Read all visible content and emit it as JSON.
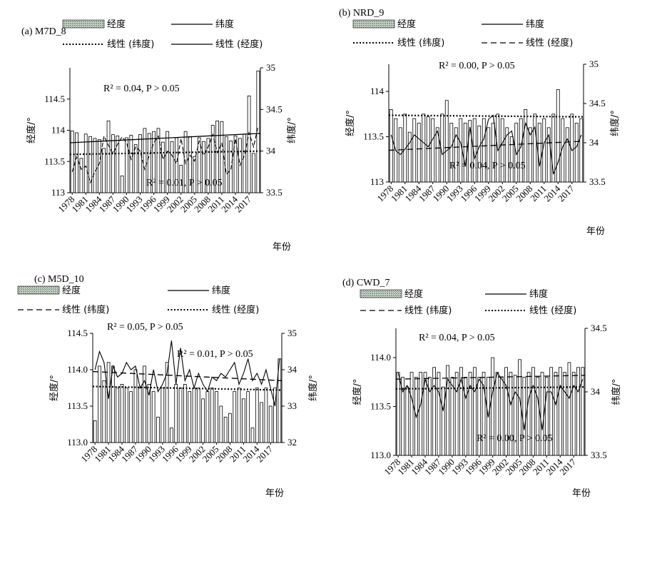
{
  "chart_data": [
    {
      "id": "a",
      "type": "bar+line",
      "title": "(a) M7D_8",
      "legend": {
        "bar": "经度",
        "lat_line": "纬度",
        "lat_trend": "线性 (纬度)",
        "lon_trend": "线性 (经度)",
        "layout": "top"
      },
      "ylabel_left": "经度/°",
      "ylabel_right": "纬度/°",
      "xlabel": "年份",
      "ylim_left": [
        113,
        115
      ],
      "yticks_left": [
        "113",
        "113.5",
        "114",
        "114.5"
      ],
      "ylim_right": [
        33.5,
        35
      ],
      "yticks_right": [
        "33.5",
        "34",
        "34.5",
        "35"
      ],
      "x_tick_labels": [
        "1978",
        "1981",
        "1984",
        "1987",
        "1990",
        "1993",
        "1996",
        "1999",
        "2002",
        "2005",
        "2008",
        "2011",
        "2014",
        "2017"
      ],
      "years": [
        1978,
        1979,
        1980,
        1981,
        1982,
        1983,
        1984,
        1985,
        1986,
        1987,
        1988,
        1989,
        1990,
        1991,
        1992,
        1993,
        1994,
        1995,
        1996,
        1997,
        1998,
        1999,
        2000,
        2001,
        2002,
        2003,
        2004,
        2005,
        2006,
        2007,
        2008,
        2009,
        2010,
        2011,
        2012,
        2013,
        2014,
        2015,
        2016,
        2017,
        2018,
        2019
      ],
      "longitude": [
        113.99,
        113.96,
        113.55,
        113.94,
        113.9,
        113.87,
        113.85,
        113.71,
        114.15,
        113.93,
        113.91,
        113.27,
        113.88,
        113.92,
        113.77,
        113.93,
        114.03,
        113.95,
        113.98,
        114.03,
        113.81,
        113.98,
        113.82,
        113.88,
        113.44,
        113.98,
        113.9,
        113.58,
        113.88,
        113.82,
        113.87,
        114.08,
        114.15,
        114.14,
        113.9,
        113.83,
        113.91,
        113.87,
        113.94,
        114.55,
        113.63,
        114.95
      ],
      "latitude": [
        33.75,
        33.93,
        33.78,
        33.82,
        33.62,
        33.75,
        33.85,
        34.18,
        34.07,
        33.97,
        34.08,
        34.17,
        34.1,
        33.9,
        34.05,
        34.0,
        33.78,
        33.95,
        34.1,
        34.18,
        33.9,
        34.0,
        33.95,
        33.85,
        34.15,
        33.85,
        33.95,
        33.88,
        34.12,
        33.95,
        34.05,
        34.2,
        33.98,
        34.1,
        33.72,
        33.78,
        34.15,
        33.83,
        33.95,
        34.22,
        34.05,
        34.3
      ],
      "lon_trend": [
        113.8,
        113.95
      ],
      "lat_trend": [
        33.96,
        34.0
      ],
      "lon_stat": "R² = 0.04, P > 0.05",
      "lat_stat": "R² = 0.01, P > 0.05",
      "lon_trend_style": "solid",
      "lat_trend_style": "dotted"
    },
    {
      "id": "b",
      "type": "bar+line",
      "title": "(b) NRD_9",
      "legend": {
        "bar": "经度",
        "lat_line": "纬度",
        "lat_trend": "线性 (纬度)",
        "lon_trend": "线性 (经度)",
        "layout": "top"
      },
      "ylabel_left": "经度/°",
      "ylabel_right": "纬度/°",
      "xlabel": "年份",
      "ylim_left": [
        113,
        114.3
      ],
      "yticks_left": [
        "113",
        "113.5",
        "114"
      ],
      "ylim_right": [
        33.5,
        35
      ],
      "yticks_right": [
        "33.5",
        "34",
        "34.5",
        "35"
      ],
      "x_tick_labels": [
        "1978",
        "1981",
        "1984",
        "1987",
        "1990",
        "1993",
        "1996",
        "1999",
        "2002",
        "2005",
        "2008",
        "2011",
        "2014",
        "2017"
      ],
      "years": [
        1978,
        1979,
        1980,
        1981,
        1982,
        1983,
        1984,
        1985,
        1986,
        1987,
        1988,
        1989,
        1990,
        1991,
        1992,
        1993,
        1994,
        1995,
        1996,
        1997,
        1998,
        1999,
        2000,
        2001,
        2002,
        2003,
        2004,
        2005,
        2006,
        2007,
        2008,
        2009,
        2010,
        2011,
        2012,
        2013,
        2014,
        2015,
        2016,
        2017,
        2018,
        2019
      ],
      "longitude": [
        113.8,
        113.7,
        113.6,
        113.75,
        113.55,
        113.7,
        113.65,
        113.75,
        113.72,
        113.7,
        113.6,
        113.75,
        113.9,
        113.65,
        113.6,
        113.7,
        113.65,
        113.68,
        113.7,
        113.62,
        113.7,
        113.6,
        113.65,
        113.75,
        113.7,
        113.6,
        113.5,
        113.65,
        113.7,
        113.8,
        113.6,
        113.75,
        113.65,
        113.7,
        113.6,
        113.75,
        114.02,
        113.7,
        113.6,
        113.75,
        113.65,
        113.7
      ],
      "latitude": [
        34.1,
        33.9,
        33.85,
        33.92,
        34.0,
        34.1,
        34.05,
        34.0,
        33.95,
        34.05,
        34.15,
        33.85,
        33.9,
        33.95,
        34.1,
        34.0,
        33.7,
        34.2,
        33.8,
        33.95,
        34.05,
        34.3,
        34.35,
        33.9,
        34.0,
        34.1,
        34.15,
        33.85,
        33.95,
        34.25,
        34.1,
        34.2,
        33.7,
        34.0,
        34.1,
        33.6,
        33.75,
        33.95,
        34.05,
        33.9,
        33.95,
        34.1
      ],
      "lon_trend": [
        113.35,
        113.45
      ],
      "lat_trend": [
        34.35,
        34.33
      ],
      "lon_stat": "R² = 0.00, P > 0.05",
      "lat_stat": "R² = 0.04, P > 0.05",
      "lon_trend_style": "dashed",
      "lat_trend_style": "dotted"
    },
    {
      "id": "c",
      "type": "bar+line",
      "title": "(c) M5D_10",
      "legend": {
        "bar": "经度",
        "lat_line": "纬度",
        "lat_trend": "线性 (纬度)",
        "lon_trend": "线性 (经度)",
        "layout": "top"
      },
      "ylabel_left": "经度/°",
      "ylabel_right": "纬度/°",
      "xlabel": "年份",
      "ylim_left": [
        113,
        114.5
      ],
      "yticks_left": [
        "113.0",
        "113.5",
        "114.0",
        "114.5"
      ],
      "ylim_right": [
        32,
        35
      ],
      "yticks_right": [
        "32",
        "33",
        "34",
        "35"
      ],
      "x_tick_labels": [
        "1978",
        "1981",
        "1984",
        "1987",
        "1990",
        "1993",
        "1996",
        "1999",
        "2002",
        "2005",
        "2008",
        "2011",
        "2014",
        "2017"
      ],
      "years": [
        1978,
        1979,
        1980,
        1981,
        1982,
        1983,
        1984,
        1985,
        1986,
        1987,
        1988,
        1989,
        1990,
        1991,
        1992,
        1993,
        1994,
        1995,
        1996,
        1997,
        1998,
        1999,
        2000,
        2001,
        2002,
        2003,
        2004,
        2005,
        2006,
        2007,
        2008,
        2009,
        2010,
        2011,
        2012,
        2013,
        2014,
        2015,
        2016,
        2017,
        2018,
        2019
      ],
      "longitude": [
        113.3,
        114.05,
        113.85,
        114.1,
        114.05,
        113.75,
        113.8,
        113.75,
        113.7,
        114.0,
        113.75,
        114.05,
        113.8,
        113.7,
        113.35,
        113.75,
        114.1,
        113.2,
        113.8,
        113.75,
        113.8,
        113.7,
        113.75,
        113.75,
        113.6,
        113.7,
        113.75,
        113.7,
        113.5,
        113.35,
        113.4,
        113.7,
        113.75,
        113.6,
        113.7,
        113.2,
        113.75,
        113.55,
        113.75,
        113.5,
        113.75,
        114.15
      ],
      "latitude": [
        34.0,
        34.5,
        34.2,
        33.2,
        34.1,
        33.8,
        33.9,
        34.2,
        34.0,
        34.1,
        33.5,
        33.7,
        33.3,
        34.0,
        33.4,
        33.6,
        33.9,
        34.8,
        33.6,
        34.6,
        33.7,
        34.0,
        33.5,
        33.9,
        33.6,
        33.4,
        33.8,
        33.7,
        33.9,
        33.8,
        34.0,
        34.2,
        33.6,
        33.9,
        34.3,
        33.7,
        33.9,
        33.6,
        34.0,
        33.5,
        33.0,
        34.3
      ],
      "lon_trend": [
        113.77,
        113.72
      ],
      "lat_trend": [
        33.95,
        33.7
      ],
      "lon_stat": "R² = 0.01, P > 0.05",
      "lat_stat": "R² = 0.05, P > 0.05",
      "lon_trend_style": "dotted",
      "lat_trend_style": "dashed"
    },
    {
      "id": "d",
      "type": "bar+line",
      "title": "(d) CWD_7",
      "legend": {
        "bar": "经度",
        "lat_line": "纬度",
        "lat_trend": "线性 (纬度)",
        "lon_trend": "线性 (经度)",
        "layout": "top"
      },
      "ylabel_left": "经度/°",
      "ylabel_right": "纬度/°",
      "xlabel": "年份",
      "ylim_left": [
        113,
        114.3
      ],
      "yticks_left": [
        "113.0",
        "113.5",
        "114.0"
      ],
      "ylim_right": [
        33.5,
        34.5
      ],
      "yticks_right": [
        "33.5",
        "34",
        "34.5"
      ],
      "x_tick_labels": [
        "1978",
        "1981",
        "1984",
        "1987",
        "1990",
        "1993",
        "1996",
        "1999",
        "2002",
        "2005",
        "2008",
        "2011",
        "2014",
        "2017"
      ],
      "years": [
        1978,
        1979,
        1980,
        1981,
        1982,
        1983,
        1984,
        1985,
        1986,
        1987,
        1988,
        1989,
        1990,
        1991,
        1992,
        1993,
        1994,
        1995,
        1996,
        1997,
        1998,
        1999,
        2000,
        2001,
        2002,
        2003,
        2004,
        2005,
        2006,
        2007,
        2008,
        2009,
        2010,
        2011,
        2012,
        2013,
        2014,
        2015,
        2016,
        2017,
        2018,
        2019
      ],
      "longitude": [
        113.85,
        113.8,
        113.7,
        113.85,
        113.8,
        113.85,
        113.85,
        113.8,
        113.9,
        113.85,
        113.7,
        113.92,
        113.8,
        113.85,
        113.9,
        113.8,
        113.85,
        113.9,
        113.8,
        113.85,
        113.8,
        114.0,
        113.85,
        113.8,
        113.9,
        113.85,
        113.82,
        113.98,
        113.8,
        113.85,
        113.9,
        113.8,
        113.85,
        113.8,
        113.9,
        113.85,
        113.9,
        113.85,
        113.95,
        113.85,
        113.9,
        113.9
      ],
      "latitude": [
        34.15,
        34.0,
        34.05,
        33.95,
        33.8,
        33.9,
        34.1,
        34.0,
        34.05,
        34.0,
        33.85,
        34.1,
        34.05,
        34.0,
        34.1,
        33.95,
        34.05,
        34.0,
        34.1,
        34.05,
        33.8,
        34.0,
        34.15,
        34.1,
        34.05,
        33.9,
        34.0,
        33.95,
        33.7,
        33.95,
        34.05,
        33.95,
        33.7,
        34.0,
        34.0,
        33.9,
        34.05,
        34.0,
        33.95,
        34.05,
        34.0,
        34.1
      ],
      "lon_trend": [
        113.68,
        113.7
      ],
      "lat_trend": [
        34.1,
        34.13
      ],
      "lon_stat": "R² = 0.00, P > 0.05",
      "lat_stat": "R² = 0.04, P > 0.05",
      "lon_trend_style": "dotted",
      "lat_trend_style": "dashed"
    }
  ],
  "colors": {
    "bar_fill": "#ffffff",
    "bar_stroke": "#000000",
    "legend_hatch": "#88a08a",
    "line": "#000000"
  }
}
